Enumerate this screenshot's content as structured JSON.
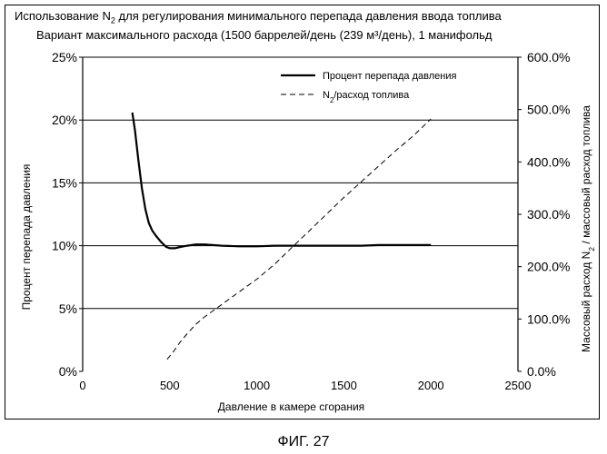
{
  "title_line1": {
    "pre": "Использование N",
    "sub": "2",
    "post": " для регулирования минимального перепада давления ввода топлива"
  },
  "title_line2": "Вариант максимального расхода (1500 баррелей/день (239 м³/день), 1 манифольд",
  "figure_caption": "ФИГ. 27",
  "chart_data": {
    "type": "line",
    "xlabel": "Давление в камере сгорания",
    "ylabel_left": "Процент перепада давления",
    "ylabel_right": {
      "pre": "Массовый расход N",
      "sub": "2",
      "post": " / массовый расход топлива"
    },
    "xlim": [
      0,
      2500
    ],
    "xticks": [
      "0",
      "500",
      "1000",
      "1500",
      "2000",
      "2500"
    ],
    "ylim_left": [
      0,
      25
    ],
    "yticks_left": [
      "0%",
      "5%",
      "10%",
      "15%",
      "20%",
      "25%"
    ],
    "ylim_right": [
      0,
      600
    ],
    "yticks_right": [
      "0.0%",
      "100.0%",
      "200.0%",
      "300.0%",
      "400.0%",
      "500.0%",
      "600.0%"
    ],
    "grid": "horizontal",
    "legend_position": "top-right",
    "series": [
      {
        "name": "Процент перепада давления",
        "axis": "left",
        "style": "solid",
        "points": [
          [
            285,
            20.6
          ],
          [
            300,
            19.2
          ],
          [
            320,
            16.8
          ],
          [
            340,
            14.6
          ],
          [
            360,
            12.9
          ],
          [
            380,
            11.8
          ],
          [
            400,
            11.2
          ],
          [
            420,
            10.8
          ],
          [
            450,
            10.3
          ],
          [
            480,
            9.9
          ],
          [
            500,
            9.8
          ],
          [
            530,
            9.8
          ],
          [
            560,
            9.9
          ],
          [
            600,
            10.0
          ],
          [
            650,
            10.1
          ],
          [
            700,
            10.1
          ],
          [
            800,
            10.0
          ],
          [
            900,
            9.95
          ],
          [
            1000,
            9.95
          ],
          [
            1100,
            10.0
          ],
          [
            1200,
            10.0
          ],
          [
            1300,
            10.0
          ],
          [
            1400,
            10.0
          ],
          [
            1500,
            10.0
          ],
          [
            1600,
            10.0
          ],
          [
            1700,
            10.05
          ],
          [
            1800,
            10.05
          ],
          [
            1900,
            10.05
          ],
          [
            2000,
            10.05
          ]
        ]
      },
      {
        "name": {
          "pre": "N",
          "sub": "2",
          "post": "/расход топлива"
        },
        "axis": "right",
        "style": "dashed",
        "points": [
          [
            485,
            23
          ],
          [
            520,
            37
          ],
          [
            560,
            56
          ],
          [
            600,
            72
          ],
          [
            650,
            90
          ],
          [
            700,
            104
          ],
          [
            750,
            116
          ],
          [
            800,
            128
          ],
          [
            900,
            152
          ],
          [
            1000,
            176
          ],
          [
            1100,
            204
          ],
          [
            1200,
            236
          ],
          [
            1300,
            268
          ],
          [
            1400,
            300
          ],
          [
            1500,
            332
          ],
          [
            1600,
            362
          ],
          [
            1700,
            392
          ],
          [
            1800,
            422
          ],
          [
            1900,
            450
          ],
          [
            2000,
            482
          ]
        ]
      }
    ]
  }
}
